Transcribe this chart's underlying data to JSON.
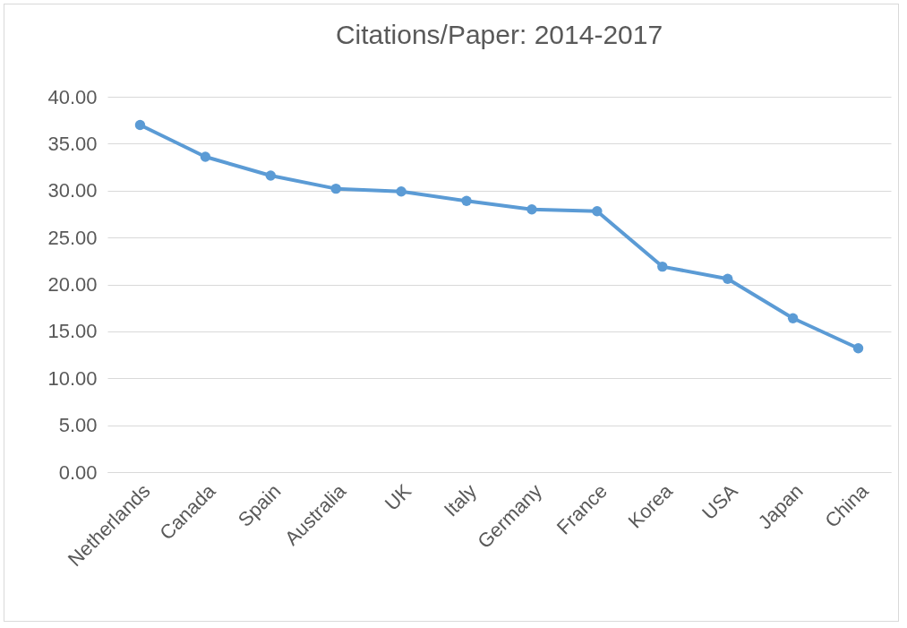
{
  "chart_data": {
    "type": "line",
    "title": "Citations/Paper: 2014-2017",
    "categories": [
      "Netherlands",
      "Canada",
      "Spain",
      "Australia",
      "UK",
      "Italy",
      "Germany",
      "France",
      "Korea",
      "USA",
      "Japan",
      "China"
    ],
    "series": [
      {
        "color": "#5b9bd5",
        "values": [
          37.0,
          33.6,
          31.6,
          30.2,
          29.9,
          28.9,
          28.0,
          27.8,
          21.9,
          20.6,
          16.4,
          13.2
        ]
      }
    ],
    "ylim": [
      0,
      40
    ],
    "yticks": [
      {
        "value": 0,
        "label": "0.00"
      },
      {
        "value": 5,
        "label": "5.00"
      },
      {
        "value": 10,
        "label": "10.00"
      },
      {
        "value": 15,
        "label": "15.00"
      },
      {
        "value": 20,
        "label": "20.00"
      },
      {
        "value": 25,
        "label": "25.00"
      },
      {
        "value": 30,
        "label": "30.00"
      },
      {
        "value": 35,
        "label": "35.00"
      },
      {
        "value": 40,
        "label": "40.00"
      }
    ],
    "grid": "y",
    "marker": "circle",
    "line_style": "solid"
  }
}
